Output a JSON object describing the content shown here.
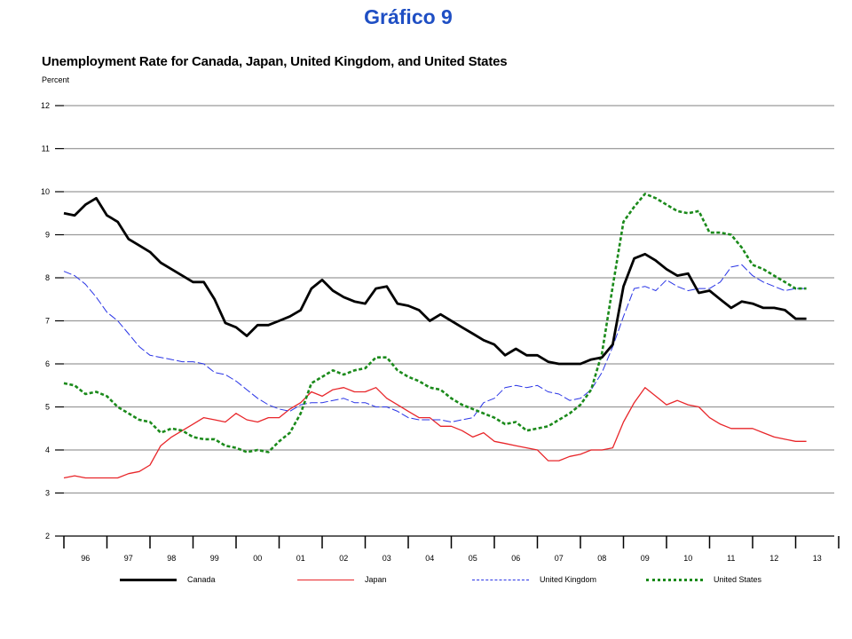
{
  "page": {
    "heading": "Gráfico 9"
  },
  "chart_data": {
    "type": "line",
    "title": "Unemployment Rate for Canada, Japan, United Kingdom, and United States",
    "ylabel": "Percent",
    "xlabel": "",
    "ylim": [
      2,
      12
    ],
    "yticks": [
      2,
      3,
      4,
      5,
      6,
      7,
      8,
      9,
      10,
      11,
      12
    ],
    "xlim": [
      1996,
      2014
    ],
    "x_tick_labels": [
      "96",
      "97",
      "98",
      "99",
      "00",
      "01",
      "02",
      "03",
      "04",
      "05",
      "06",
      "07",
      "08",
      "09",
      "10",
      "11",
      "12",
      "13"
    ],
    "grid": true,
    "legend_position": "bottom",
    "series": [
      {
        "name": "Canada",
        "color": "#000000",
        "style": "solid-thick",
        "x": [
          1996.0,
          1996.25,
          1996.5,
          1996.75,
          1997.0,
          1997.25,
          1997.5,
          1997.75,
          1998.0,
          1998.25,
          1998.5,
          1998.75,
          1999.0,
          1999.25,
          1999.5,
          1999.75,
          2000.0,
          2000.25,
          2000.5,
          2000.75,
          2001.0,
          2001.25,
          2001.5,
          2001.75,
          2002.0,
          2002.25,
          2002.5,
          2002.75,
          2003.0,
          2003.25,
          2003.5,
          2003.75,
          2004.0,
          2004.25,
          2004.5,
          2004.75,
          2005.0,
          2005.25,
          2005.5,
          2005.75,
          2006.0,
          2006.25,
          2006.5,
          2006.75,
          2007.0,
          2007.25,
          2007.5,
          2007.75,
          2008.0,
          2008.25,
          2008.5,
          2008.75,
          2009.0,
          2009.25,
          2009.5,
          2009.75,
          2010.0,
          2010.25,
          2010.5,
          2010.75,
          2011.0,
          2011.25,
          2011.5,
          2011.75,
          2012.0,
          2012.25,
          2012.5,
          2012.75,
          2013.0,
          2013.25
        ],
        "values": [
          9.5,
          9.45,
          9.7,
          9.85,
          9.45,
          9.3,
          8.9,
          8.75,
          8.6,
          8.35,
          8.2,
          8.05,
          7.9,
          7.9,
          7.5,
          6.95,
          6.85,
          6.65,
          6.9,
          6.9,
          7.0,
          7.1,
          7.25,
          7.75,
          7.95,
          7.7,
          7.55,
          7.45,
          7.4,
          7.75,
          7.8,
          7.4,
          7.35,
          7.25,
          7.0,
          7.15,
          7.0,
          6.85,
          6.7,
          6.55,
          6.45,
          6.2,
          6.35,
          6.2,
          6.2,
          6.05,
          6.0,
          6.0,
          6.0,
          6.1,
          6.15,
          6.45,
          7.8,
          8.45,
          8.55,
          8.4,
          8.2,
          8.05,
          8.1,
          7.65,
          7.7,
          7.5,
          7.3,
          7.45,
          7.4,
          7.3,
          7.3,
          7.25,
          7.05,
          7.05
        ]
      },
      {
        "name": "Japan",
        "color": "#e8262a",
        "style": "solid-thin",
        "x": [
          1996.0,
          1996.25,
          1996.5,
          1996.75,
          1997.0,
          1997.25,
          1997.5,
          1997.75,
          1998.0,
          1998.25,
          1998.5,
          1998.75,
          1999.0,
          1999.25,
          1999.5,
          1999.75,
          2000.0,
          2000.25,
          2000.5,
          2000.75,
          2001.0,
          2001.25,
          2001.5,
          2001.75,
          2002.0,
          2002.25,
          2002.5,
          2002.75,
          2003.0,
          2003.25,
          2003.5,
          2003.75,
          2004.0,
          2004.25,
          2004.5,
          2004.75,
          2005.0,
          2005.25,
          2005.5,
          2005.75,
          2006.0,
          2006.25,
          2006.5,
          2006.75,
          2007.0,
          2007.25,
          2007.5,
          2007.75,
          2008.0,
          2008.25,
          2008.5,
          2008.75,
          2009.0,
          2009.25,
          2009.5,
          2009.75,
          2010.0,
          2010.25,
          2010.5,
          2010.75,
          2011.0,
          2011.25,
          2011.5,
          2011.75,
          2012.0,
          2012.25,
          2012.5,
          2012.75,
          2013.0,
          2013.25
        ],
        "values": [
          3.35,
          3.4,
          3.35,
          3.35,
          3.35,
          3.35,
          3.45,
          3.5,
          3.65,
          4.1,
          4.3,
          4.45,
          4.6,
          4.75,
          4.7,
          4.65,
          4.85,
          4.7,
          4.65,
          4.75,
          4.75,
          4.95,
          5.1,
          5.35,
          5.25,
          5.4,
          5.45,
          5.35,
          5.35,
          5.45,
          5.2,
          5.05,
          4.9,
          4.75,
          4.75,
          4.55,
          4.55,
          4.45,
          4.3,
          4.4,
          4.2,
          4.15,
          4.1,
          4.05,
          4.0,
          3.75,
          3.75,
          3.85,
          3.9,
          4.0,
          4.0,
          4.05,
          4.65,
          5.1,
          5.45,
          5.25,
          5.05,
          5.15,
          5.05,
          5.0,
          4.75,
          4.6,
          4.5,
          4.5,
          4.5,
          4.4,
          4.3,
          4.25,
          4.2,
          4.2
        ]
      },
      {
        "name": "United Kingdom",
        "color": "#2a35e6",
        "style": "dashed-long",
        "x": [
          1996.0,
          1996.25,
          1996.5,
          1996.75,
          1997.0,
          1997.25,
          1997.5,
          1997.75,
          1998.0,
          1998.25,
          1998.5,
          1998.75,
          1999.0,
          1999.25,
          1999.5,
          1999.75,
          2000.0,
          2000.25,
          2000.5,
          2000.75,
          2001.0,
          2001.25,
          2001.5,
          2001.75,
          2002.0,
          2002.25,
          2002.5,
          2002.75,
          2003.0,
          2003.25,
          2003.5,
          2003.75,
          2004.0,
          2004.25,
          2004.5,
          2004.75,
          2005.0,
          2005.25,
          2005.5,
          2005.75,
          2006.0,
          2006.25,
          2006.5,
          2006.75,
          2007.0,
          2007.25,
          2007.5,
          2007.75,
          2008.0,
          2008.25,
          2008.5,
          2008.75,
          2009.0,
          2009.25,
          2009.5,
          2009.75,
          2010.0,
          2010.25,
          2010.5,
          2010.75,
          2011.0,
          2011.25,
          2011.5,
          2011.75,
          2012.0,
          2012.25,
          2012.5,
          2012.75,
          2013.0,
          2013.25
        ],
        "values": [
          8.15,
          8.05,
          7.85,
          7.55,
          7.2,
          7.0,
          6.7,
          6.4,
          6.2,
          6.15,
          6.1,
          6.05,
          6.05,
          6.0,
          5.8,
          5.75,
          5.6,
          5.4,
          5.2,
          5.05,
          4.95,
          4.9,
          5.05,
          5.1,
          5.1,
          5.15,
          5.2,
          5.1,
          5.1,
          5.0,
          5.0,
          4.9,
          4.75,
          4.7,
          4.7,
          4.7,
          4.65,
          4.7,
          4.75,
          5.1,
          5.2,
          5.45,
          5.5,
          5.45,
          5.5,
          5.35,
          5.3,
          5.15,
          5.2,
          5.4,
          5.8,
          6.4,
          7.1,
          7.75,
          7.8,
          7.7,
          7.95,
          7.8,
          7.7,
          7.75,
          7.75,
          7.9,
          8.25,
          8.3,
          8.05,
          7.9,
          7.8,
          7.7,
          7.75,
          7.75
        ]
      },
      {
        "name": "United States",
        "color": "#1b8a1b",
        "style": "dotted-thick",
        "x": [
          1996.0,
          1996.25,
          1996.5,
          1996.75,
          1997.0,
          1997.25,
          1997.5,
          1997.75,
          1998.0,
          1998.25,
          1998.5,
          1998.75,
          1999.0,
          1999.25,
          1999.5,
          1999.75,
          2000.0,
          2000.25,
          2000.5,
          2000.75,
          2001.0,
          2001.25,
          2001.5,
          2001.75,
          2002.0,
          2002.25,
          2002.5,
          2002.75,
          2003.0,
          2003.25,
          2003.5,
          2003.75,
          2004.0,
          2004.25,
          2004.5,
          2004.75,
          2005.0,
          2005.25,
          2005.5,
          2005.75,
          2006.0,
          2006.25,
          2006.5,
          2006.75,
          2007.0,
          2007.25,
          2007.5,
          2007.75,
          2008.0,
          2008.25,
          2008.5,
          2008.75,
          2009.0,
          2009.25,
          2009.5,
          2009.75,
          2010.0,
          2010.25,
          2010.5,
          2010.75,
          2011.0,
          2011.25,
          2011.5,
          2011.75,
          2012.0,
          2012.25,
          2012.5,
          2012.75,
          2013.0,
          2013.25
        ],
        "values": [
          5.55,
          5.5,
          5.3,
          5.35,
          5.25,
          5.0,
          4.85,
          4.7,
          4.65,
          4.4,
          4.5,
          4.45,
          4.3,
          4.25,
          4.25,
          4.1,
          4.05,
          3.95,
          4.0,
          3.95,
          4.2,
          4.4,
          4.85,
          5.55,
          5.7,
          5.85,
          5.75,
          5.85,
          5.9,
          6.15,
          6.15,
          5.85,
          5.7,
          5.6,
          5.45,
          5.4,
          5.2,
          5.05,
          4.95,
          4.85,
          4.75,
          4.6,
          4.65,
          4.45,
          4.5,
          4.55,
          4.7,
          4.85,
          5.05,
          5.4,
          6.25,
          7.8,
          9.3,
          9.65,
          9.95,
          9.85,
          9.7,
          9.55,
          9.5,
          9.55,
          9.05,
          9.05,
          9.0,
          8.7,
          8.3,
          8.2,
          8.05,
          7.9,
          7.75,
          7.75
        ]
      }
    ]
  }
}
